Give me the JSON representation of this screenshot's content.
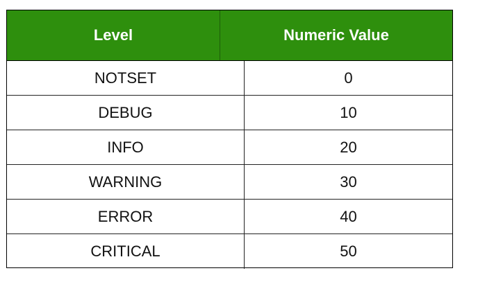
{
  "table": {
    "header": {
      "level": "Level",
      "value": "Numeric Value"
    },
    "rows": [
      {
        "level": "NOTSET",
        "value": "0"
      },
      {
        "level": "DEBUG",
        "value": "10"
      },
      {
        "level": "INFO",
        "value": "20"
      },
      {
        "level": "WARNING",
        "value": "30"
      },
      {
        "level": "ERROR",
        "value": "40"
      },
      {
        "level": "CRITICAL",
        "value": "50"
      }
    ]
  },
  "colors": {
    "header_bg": "#2e8f0d",
    "header_text": "#ffffff",
    "border": "#000000"
  }
}
